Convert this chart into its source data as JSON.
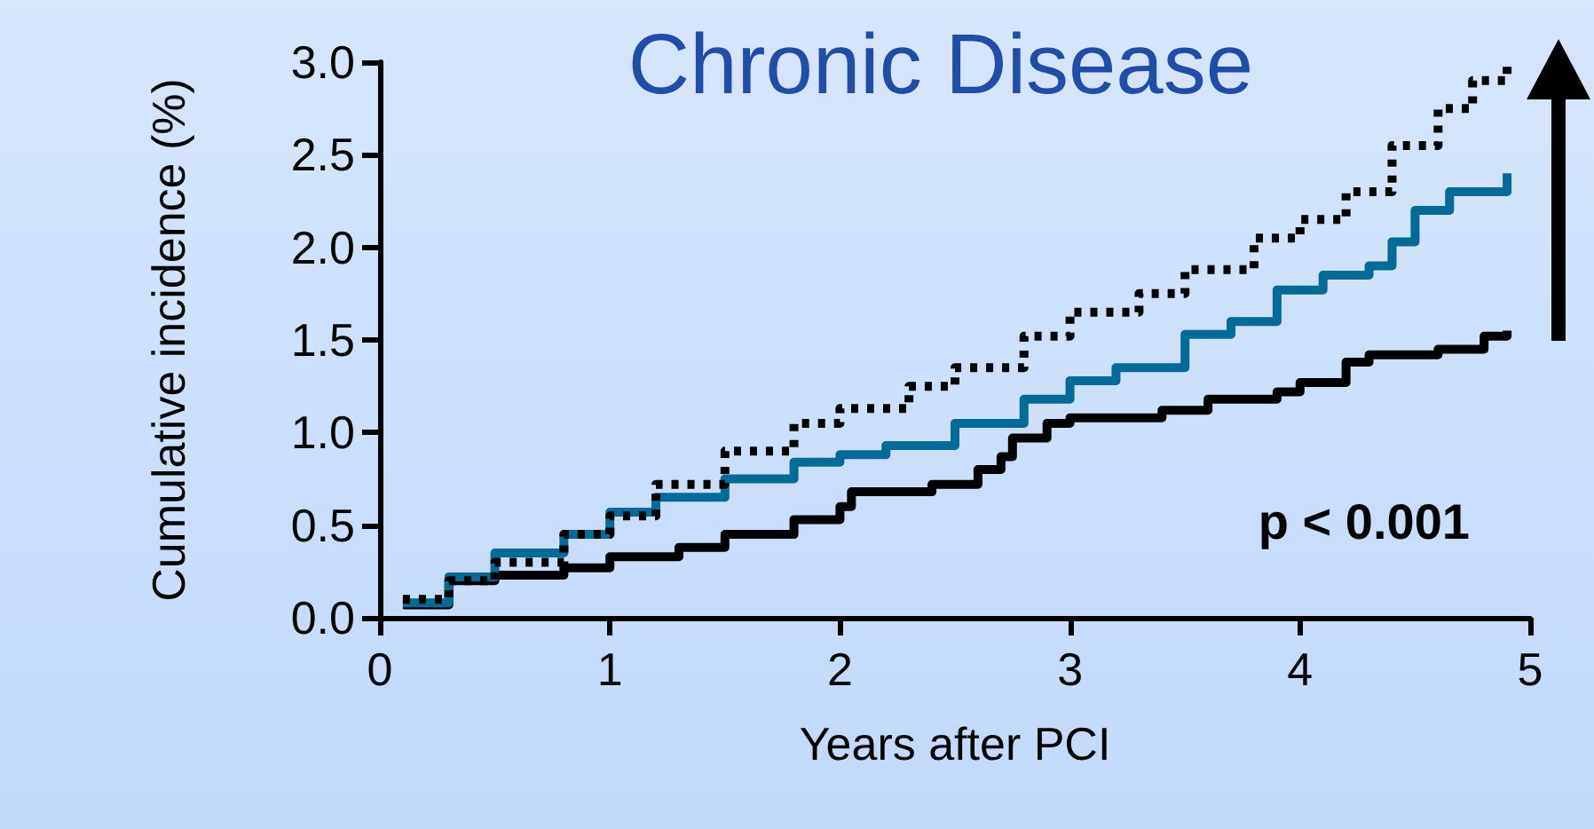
{
  "chart_data": {
    "type": "step",
    "title": "Chronic Disease",
    "xlabel": "Years after PCI",
    "ylabel": "Cumulative incidence (%)",
    "xlim": [
      0,
      5
    ],
    "xticks": [
      0,
      1,
      2,
      3,
      4,
      5
    ],
    "ylim": [
      0,
      3
    ],
    "yticks": [
      {
        "value": 0,
        "label": "0.0"
      },
      {
        "value": 0.5,
        "label": "0.5"
      },
      {
        "value": 1,
        "label": "1.0"
      },
      {
        "value": 1.5,
        "label": "1.5"
      },
      {
        "value": 2,
        "label": "2.0"
      },
      {
        "value": 2.5,
        "label": "2.5"
      },
      {
        "value": 3,
        "label": "3.0"
      }
    ],
    "grid": false,
    "marker": "none",
    "annotations": [
      "p < 0.001"
    ],
    "series": [
      {
        "color": "#000000",
        "line_style": "solid",
        "x": [
          0.1,
          0.3,
          0.5,
          0.8,
          1.0,
          1.3,
          1.5,
          1.8,
          2.0,
          2.05,
          2.4,
          2.6,
          2.7,
          2.75,
          2.9,
          3.0,
          3.4,
          3.6,
          3.9,
          4.0,
          4.2,
          4.3,
          4.6,
          4.8,
          4.9
        ],
        "values": [
          0.07,
          0.2,
          0.23,
          0.27,
          0.33,
          0.38,
          0.45,
          0.53,
          0.6,
          0.68,
          0.72,
          0.8,
          0.87,
          0.97,
          1.05,
          1.08,
          1.12,
          1.18,
          1.22,
          1.27,
          1.38,
          1.42,
          1.45,
          1.52,
          1.55
        ]
      },
      {
        "color": "#006b99",
        "line_style": "solid",
        "x": [
          0.1,
          0.3,
          0.5,
          0.8,
          1.0,
          1.2,
          1.5,
          1.8,
          2.0,
          2.2,
          2.5,
          2.8,
          3.0,
          3.2,
          3.5,
          3.7,
          3.9,
          4.1,
          4.3,
          4.4,
          4.5,
          4.65,
          4.9
        ],
        "values": [
          0.08,
          0.22,
          0.35,
          0.45,
          0.57,
          0.65,
          0.75,
          0.84,
          0.88,
          0.93,
          1.05,
          1.18,
          1.28,
          1.35,
          1.53,
          1.6,
          1.77,
          1.85,
          1.9,
          2.03,
          2.2,
          2.3,
          2.4
        ]
      },
      {
        "color": "#000000",
        "line_style": "dotted",
        "x": [
          0.1,
          0.3,
          0.5,
          0.8,
          1.0,
          1.2,
          1.5,
          1.8,
          2.0,
          2.3,
          2.5,
          2.8,
          3.0,
          3.3,
          3.5,
          3.8,
          4.0,
          4.2,
          4.4,
          4.6,
          4.75,
          4.9
        ],
        "values": [
          0.1,
          0.2,
          0.3,
          0.45,
          0.55,
          0.72,
          0.9,
          1.05,
          1.13,
          1.25,
          1.35,
          1.52,
          1.65,
          1.75,
          1.88,
          2.05,
          2.15,
          2.3,
          2.55,
          2.75,
          2.9,
          2.98
        ]
      }
    ]
  }
}
